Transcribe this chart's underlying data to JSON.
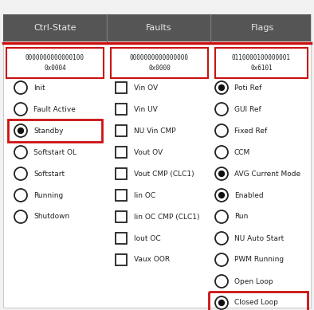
{
  "bg_color": "#f2f2f2",
  "panel_bg": "#ffffff",
  "header_color": "#555555",
  "header_text_color": "#e8e8e8",
  "red_color": "#cc1111",
  "text_color": "#222222",
  "columns": [
    "Ctrl-State",
    "Faults",
    "Flags"
  ],
  "binary_values": [
    "0000000000000100\n0x0004",
    "0000000000000000\n0x0000",
    "0110000100000001\n0x6101"
  ],
  "ctrl_state_items": [
    {
      "label": "Init",
      "filled": false,
      "highlighted": false
    },
    {
      "label": "Fault Active",
      "filled": false,
      "highlighted": false
    },
    {
      "label": "Standby",
      "filled": true,
      "highlighted": true
    },
    {
      "label": "Softstart OL",
      "filled": false,
      "highlighted": false
    },
    {
      "label": "Softstart",
      "filled": false,
      "highlighted": false
    },
    {
      "label": "Running",
      "filled": false,
      "highlighted": false
    },
    {
      "label": "Shutdown",
      "filled": false,
      "highlighted": false
    }
  ],
  "faults_items": [
    {
      "label": "Vin OV",
      "filled": false,
      "highlighted": false
    },
    {
      "label": "Vin UV",
      "filled": false,
      "highlighted": false
    },
    {
      "label": "NU Vin CMP",
      "filled": false,
      "highlighted": false
    },
    {
      "label": "Vout OV",
      "filled": false,
      "highlighted": false
    },
    {
      "label": "Vout CMP (CLC1)",
      "filled": false,
      "highlighted": false
    },
    {
      "label": "Iin OC",
      "filled": false,
      "highlighted": false
    },
    {
      "label": "Iin OC CMP (CLC1)",
      "filled": false,
      "highlighted": false
    },
    {
      "label": "Iout OC",
      "filled": false,
      "highlighted": false
    },
    {
      "label": "Vaux OOR",
      "filled": false,
      "highlighted": false
    }
  ],
  "flags_items": [
    {
      "label": "Poti Ref",
      "filled": true,
      "highlighted": false
    },
    {
      "label": "GUI Ref",
      "filled": false,
      "highlighted": false
    },
    {
      "label": "Fixed Ref",
      "filled": false,
      "highlighted": false
    },
    {
      "label": "CCM",
      "filled": false,
      "highlighted": false
    },
    {
      "label": "AVG Current Mode",
      "filled": true,
      "highlighted": false
    },
    {
      "label": "Enabled",
      "filled": true,
      "highlighted": false
    },
    {
      "label": "Run",
      "filled": false,
      "highlighted": false
    },
    {
      "label": "NU Auto Start",
      "filled": false,
      "highlighted": false
    },
    {
      "label": "PWM Running",
      "filled": false,
      "highlighted": false
    },
    {
      "label": "Open Loop",
      "filled": false,
      "highlighted": false
    },
    {
      "label": "Closed Loop",
      "filled": true,
      "highlighted": true
    }
  ]
}
